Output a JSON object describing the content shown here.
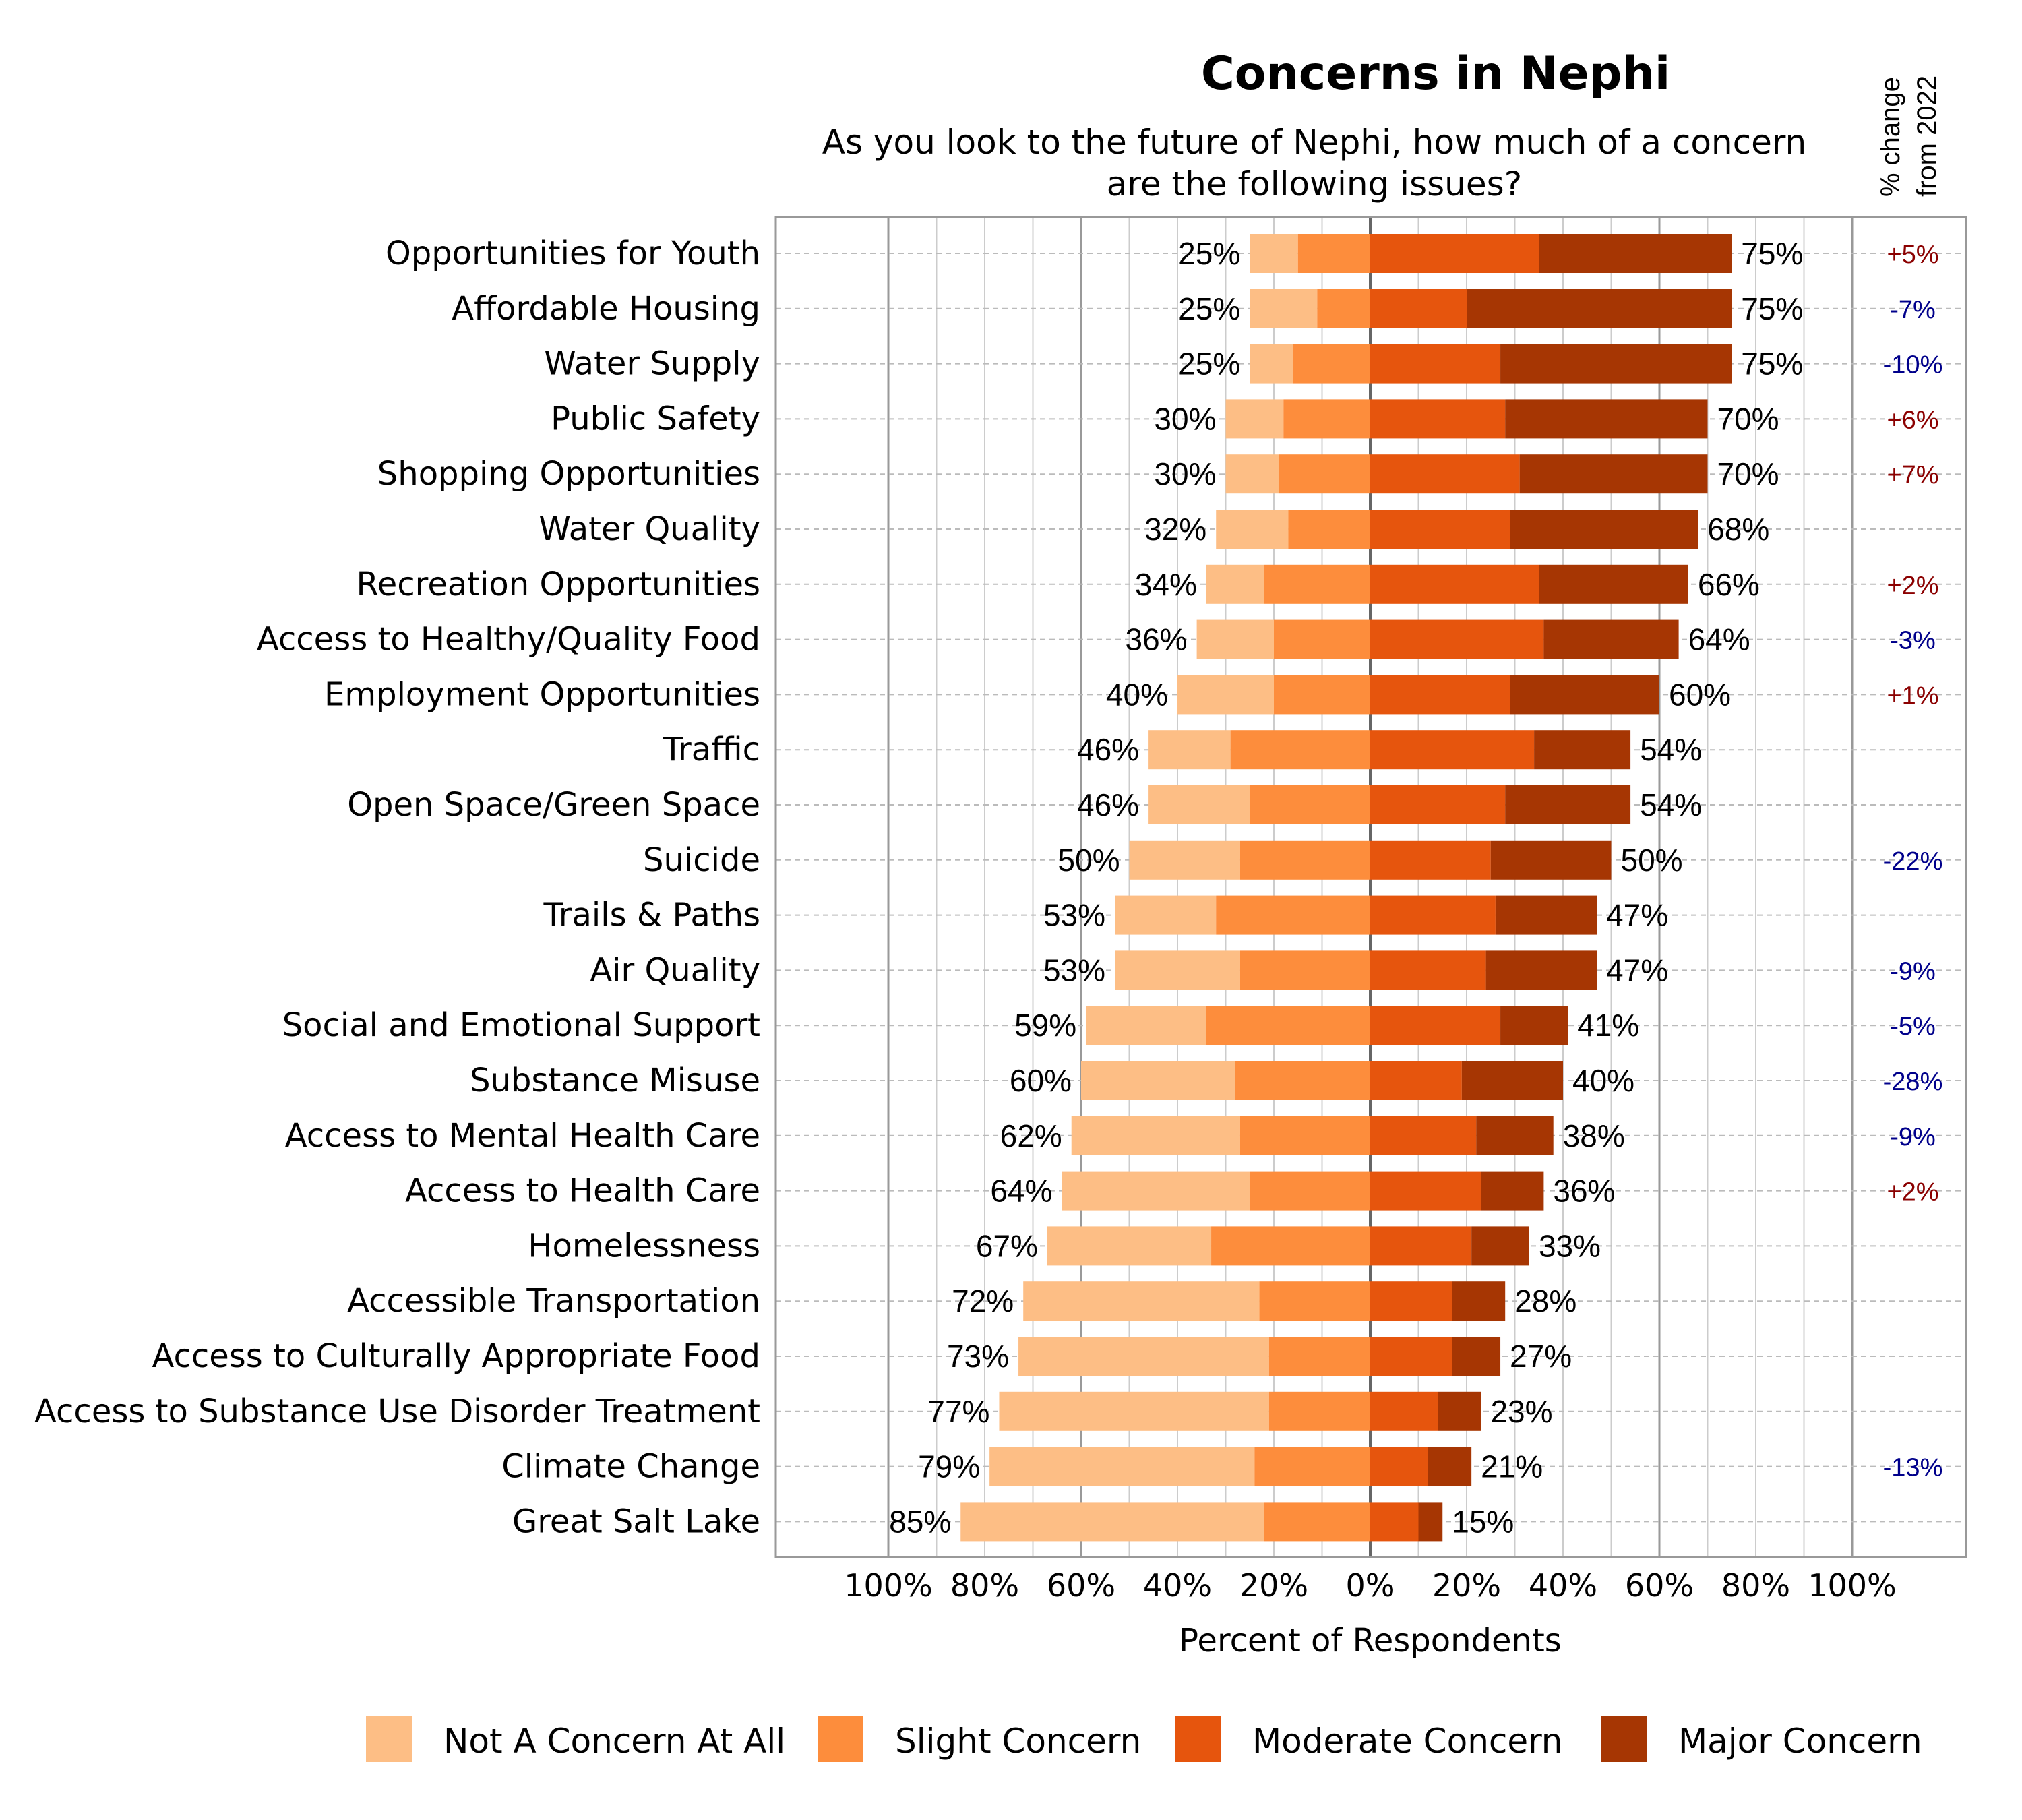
{
  "chart_data": {
    "type": "bar",
    "orientation": "horizontal",
    "stacked": "diverging",
    "title": "Concerns in Nephi",
    "subtitle": [
      "As you look to the future of Nephi, how much of a concern",
      "are the following issues?"
    ],
    "xlabel": "Percent of Respondents",
    "ylabel": "",
    "change_header": [
      "% change",
      "from 2022"
    ],
    "xlim": [
      -100,
      100
    ],
    "x_ticks": [
      "100%",
      "80%",
      "60%",
      "40%",
      "20%",
      "0%",
      "20%",
      "40%",
      "60%",
      "80%",
      "100%"
    ],
    "grid": true,
    "legend_position": "bottom",
    "colors": {
      "Not A Concern At All": "#FDBE85",
      "Slight Concern": "#FD8D3C",
      "Moderate Concern": "#E6550D",
      "Major Concern": "#A63603",
      "change_positive": "#8B0000",
      "change_negative": "#00008B"
    },
    "series": [
      {
        "name": "Not A Concern At All",
        "side": "left"
      },
      {
        "name": "Slight Concern",
        "side": "left"
      },
      {
        "name": "Moderate Concern",
        "side": "right"
      },
      {
        "name": "Major Concern",
        "side": "right"
      }
    ],
    "rows": [
      {
        "category": "Opportunities for Youth",
        "values": [
          10,
          15,
          35,
          40
        ],
        "left_label": "25%",
        "right_label": "75%",
        "change": "+5%"
      },
      {
        "category": "Affordable Housing",
        "values": [
          14,
          11,
          20,
          55
        ],
        "left_label": "25%",
        "right_label": "75%",
        "change": "-7%"
      },
      {
        "category": "Water Supply",
        "values": [
          9,
          16,
          27,
          48
        ],
        "left_label": "25%",
        "right_label": "75%",
        "change": "-10%"
      },
      {
        "category": "Public Safety",
        "values": [
          12,
          18,
          28,
          42
        ],
        "left_label": "30%",
        "right_label": "70%",
        "change": "+6%"
      },
      {
        "category": "Shopping Opportunities",
        "values": [
          11,
          19,
          31,
          39
        ],
        "left_label": "30%",
        "right_label": "70%",
        "change": "+7%"
      },
      {
        "category": "Water Quality",
        "values": [
          15,
          17,
          29,
          39
        ],
        "left_label": "32%",
        "right_label": "68%",
        "change": ""
      },
      {
        "category": "Recreation Opportunities",
        "values": [
          12,
          22,
          35,
          31
        ],
        "left_label": "34%",
        "right_label": "66%",
        "change": "+2%"
      },
      {
        "category": "Access to Healthy/Quality Food",
        "values": [
          16,
          20,
          36,
          28
        ],
        "left_label": "36%",
        "right_label": "64%",
        "change": "-3%"
      },
      {
        "category": "Employment Opportunities",
        "values": [
          20,
          20,
          29,
          31
        ],
        "left_label": "40%",
        "right_label": "60%",
        "change": "+1%"
      },
      {
        "category": "Traffic",
        "values": [
          17,
          29,
          34,
          20
        ],
        "left_label": "46%",
        "right_label": "54%",
        "change": ""
      },
      {
        "category": "Open Space/Green Space",
        "values": [
          21,
          25,
          28,
          26
        ],
        "left_label": "46%",
        "right_label": "54%",
        "change": ""
      },
      {
        "category": "Suicide",
        "values": [
          23,
          27,
          25,
          25
        ],
        "left_label": "50%",
        "right_label": "50%",
        "change": "-22%"
      },
      {
        "category": "Trails & Paths",
        "values": [
          21,
          32,
          26,
          21
        ],
        "left_label": "53%",
        "right_label": "47%",
        "change": ""
      },
      {
        "category": "Air Quality",
        "values": [
          26,
          27,
          24,
          23
        ],
        "left_label": "53%",
        "right_label": "47%",
        "change": "-9%"
      },
      {
        "category": "Social and Emotional Support",
        "values": [
          25,
          34,
          27,
          14
        ],
        "left_label": "59%",
        "right_label": "41%",
        "change": "-5%"
      },
      {
        "category": "Substance Misuse",
        "values": [
          32,
          28,
          19,
          21
        ],
        "left_label": "60%",
        "right_label": "40%",
        "change": "-28%"
      },
      {
        "category": "Access to Mental Health Care",
        "values": [
          35,
          27,
          22,
          16
        ],
        "left_label": "62%",
        "right_label": "38%",
        "change": "-9%"
      },
      {
        "category": "Access to Health Care",
        "values": [
          39,
          25,
          23,
          13
        ],
        "left_label": "64%",
        "right_label": "36%",
        "change": "+2%"
      },
      {
        "category": "Homelessness",
        "values": [
          34,
          33,
          21,
          12
        ],
        "left_label": "67%",
        "right_label": "33%",
        "change": ""
      },
      {
        "category": "Accessible Transportation",
        "values": [
          49,
          23,
          17,
          11
        ],
        "left_label": "72%",
        "right_label": "28%",
        "change": ""
      },
      {
        "category": "Access to Culturally Appropriate Food",
        "values": [
          52,
          21,
          17,
          10
        ],
        "left_label": "73%",
        "right_label": "27%",
        "change": ""
      },
      {
        "category": "Access to Substance Use Disorder Treatment",
        "values": [
          56,
          21,
          14,
          9
        ],
        "left_label": "77%",
        "right_label": "23%",
        "change": ""
      },
      {
        "category": "Climate Change",
        "values": [
          55,
          24,
          12,
          9
        ],
        "left_label": "79%",
        "right_label": "21%",
        "change": "-13%"
      },
      {
        "category": "Great Salt Lake",
        "values": [
          63,
          22,
          10,
          5
        ],
        "left_label": "85%",
        "right_label": "15%",
        "change": ""
      }
    ]
  }
}
